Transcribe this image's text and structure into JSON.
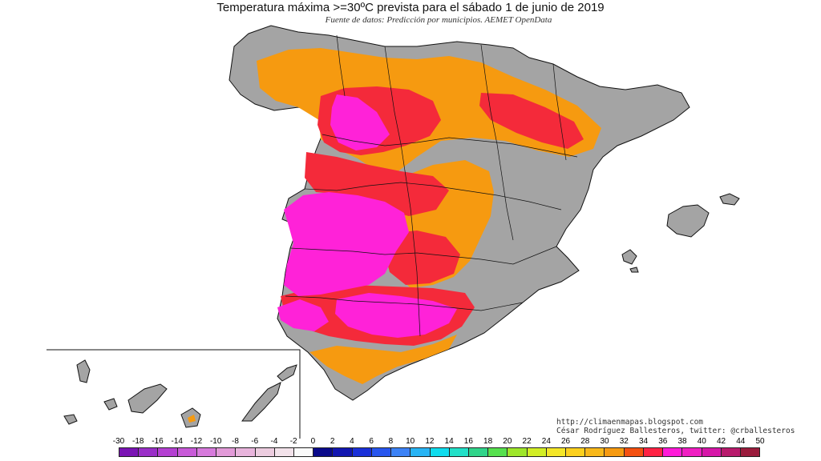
{
  "title": "Temperatura máxima >=30ºC prevista para el sábado 1 de junio de 2019",
  "subtitle": "Fuente de datos: Predicción por municipios. AEMET OpenData",
  "credits": {
    "url": "http://climaenmapas.blogspot.com",
    "author": "César Rodríguez Ballesteros, twitter: @crballesteros"
  },
  "legend": {
    "ticks": [
      "-30",
      "-18",
      "-16",
      "-14",
      "-12",
      "-10",
      "-8",
      "-6",
      "-4",
      "-2",
      "0",
      "2",
      "4",
      "6",
      "8",
      "10",
      "12",
      "14",
      "16",
      "18",
      "20",
      "22",
      "24",
      "26",
      "28",
      "30",
      "32",
      "34",
      "36",
      "38",
      "40",
      "42",
      "44",
      "50"
    ],
    "colors": [
      "#7a14b4",
      "#9a2fc8",
      "#b440d2",
      "#c85ad8",
      "#d77adc",
      "#e29ad8",
      "#e8b4dc",
      "#ecccdf",
      "#f2e2ea",
      "#fafafa",
      "#0a0a8a",
      "#1216b0",
      "#1a30d8",
      "#2856ee",
      "#3c82f6",
      "#28b4f4",
      "#10dced",
      "#22e0c8",
      "#30d48a",
      "#56e04e",
      "#9ee62a",
      "#d2ee26",
      "#f4e628",
      "#fcd01e",
      "#f8b81a",
      "#f69a10",
      "#f45010",
      "#ff2244",
      "#ff1ad8",
      "#f01ec2",
      "#d616a8",
      "#b81a6c",
      "#9a1c3c"
    ]
  },
  "colors": {
    "below_threshold": "#a4a4a4",
    "t30_32": "#f69a10",
    "t32_34": "#f42a3a",
    "t34_36": "#ff22d8",
    "border": "#111111"
  }
}
